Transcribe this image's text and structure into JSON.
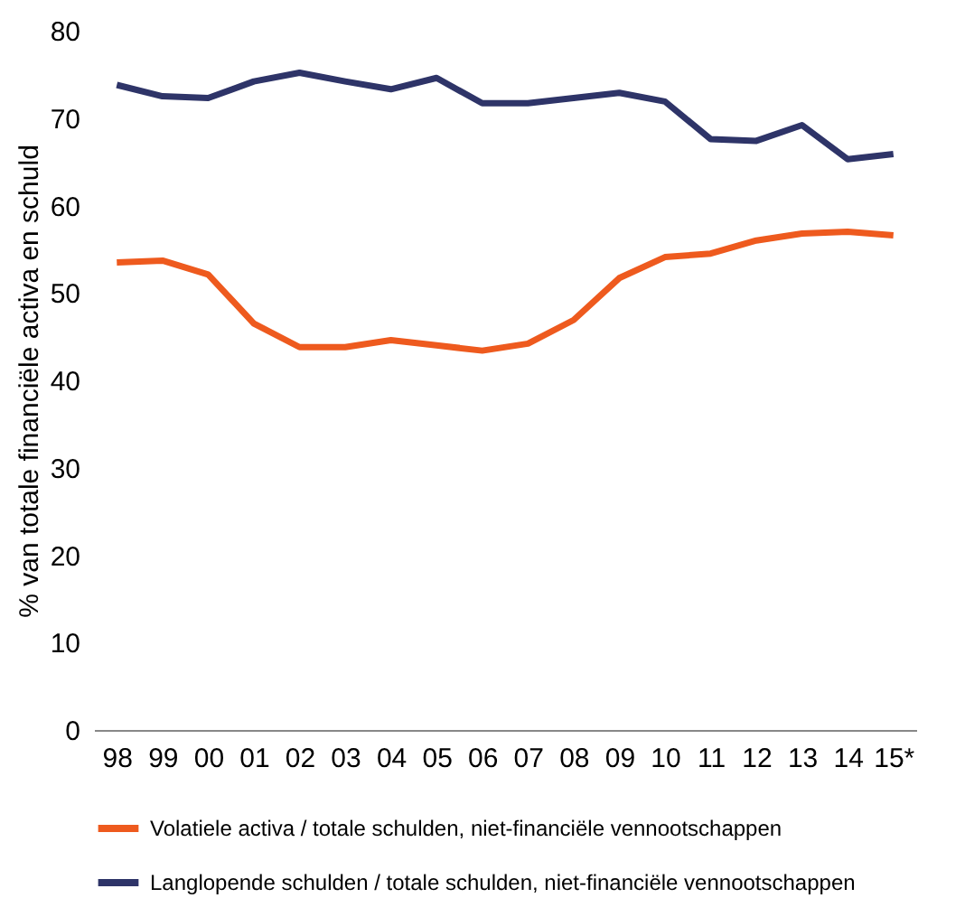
{
  "chart_data": {
    "type": "line",
    "ylabel": "% van totale financiële activa en schuld",
    "categories": [
      "98",
      "99",
      "00",
      "01",
      "02",
      "03",
      "04",
      "05",
      "06",
      "07",
      "08",
      "09",
      "10",
      "11",
      "12",
      "13",
      "14",
      "15*"
    ],
    "series": [
      {
        "name": "Volatiele activa / totale schulden, niet-financiële vennootschappen",
        "color": "#ee5a1e",
        "values": [
          53.5,
          53.7,
          52.1,
          46.5,
          43.8,
          43.8,
          44.6,
          44.0,
          43.4,
          44.2,
          46.9,
          51.7,
          54.1,
          54.5,
          56.0,
          56.8,
          57.0,
          56.6
        ]
      },
      {
        "name": "Langlopende schulden / totale schulden, niet-financiële vennootschappen",
        "color": "#2e3468",
        "values": [
          73.8,
          72.5,
          72.3,
          74.2,
          75.2,
          74.2,
          73.3,
          74.6,
          71.7,
          71.7,
          72.3,
          72.9,
          71.9,
          67.6,
          67.4,
          69.2,
          65.3,
          65.9
        ]
      }
    ],
    "ylim": [
      0,
      80
    ],
    "yticks": [
      0,
      10,
      20,
      30,
      40,
      50,
      60,
      70,
      80
    ],
    "grid": false,
    "legend": "bottom",
    "marker": "none",
    "line_style": "solid"
  }
}
